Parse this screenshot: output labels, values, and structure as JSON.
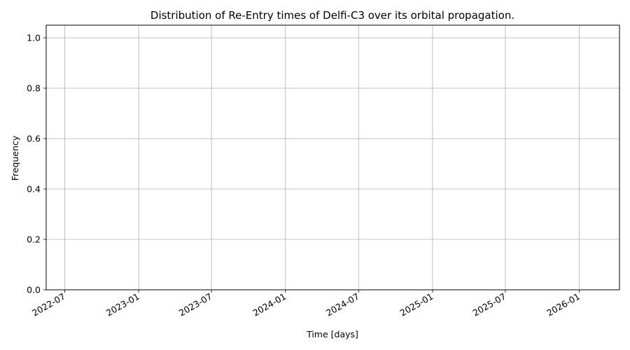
{
  "chart_data": {
    "type": "bar",
    "title": "Distribution of Re-Entry times of Delfi-C3 over its orbital propagation.",
    "xlabel": "Time [days]",
    "ylabel": "Frequency",
    "x_axis_type": "date",
    "xlim": [
      "2022-05-16",
      "2026-04-11"
    ],
    "ylim": [
      0,
      1.05
    ],
    "x_ticks": [
      "2022-07",
      "2023-01",
      "2023-07",
      "2024-01",
      "2024-07",
      "2025-01",
      "2025-07",
      "2026-01"
    ],
    "y_ticks": [
      "0.0",
      "0.2",
      "0.4",
      "0.6",
      "0.8",
      "1.0"
    ],
    "grid": true,
    "series": []
  },
  "colors": {
    "grid": "#b0b0b0",
    "axis": "#000000",
    "background": "#ffffff"
  }
}
